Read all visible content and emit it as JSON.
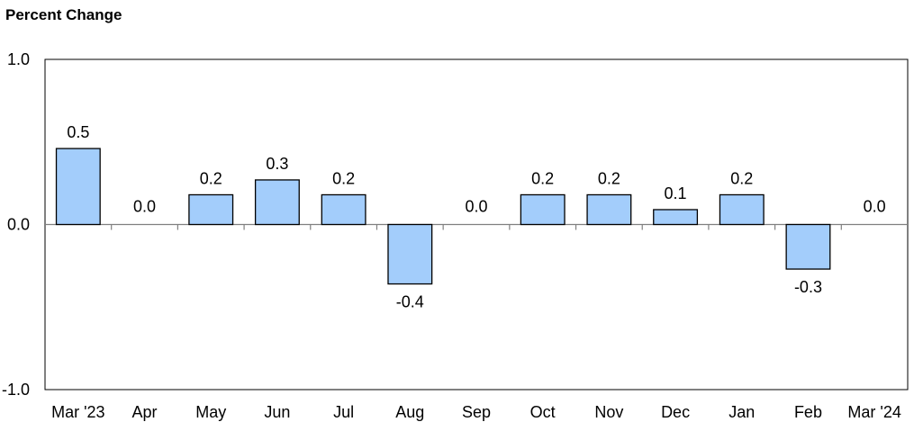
{
  "chart_data": {
    "type": "bar",
    "title": "Percent Change",
    "xlabel": "",
    "ylabel": "",
    "categories": [
      "Mar '23",
      "Apr",
      "May",
      "Jun",
      "Jul",
      "Aug",
      "Sep",
      "Oct",
      "Nov",
      "Dec",
      "Jan",
      "Feb",
      "Mar '24"
    ],
    "values": [
      0.46,
      0.0,
      0.18,
      0.27,
      0.18,
      -0.36,
      0.0,
      0.18,
      0.18,
      0.09,
      0.18,
      -0.27,
      0.0
    ],
    "data_labels": [
      "0.5",
      "0.0",
      "0.2",
      "0.3",
      "0.2",
      "-0.4",
      "0.0",
      "0.2",
      "0.2",
      "0.1",
      "0.2",
      "-0.3",
      "0.0"
    ],
    "ylim": [
      -1.0,
      1.0
    ],
    "yticks": [
      1.0,
      0.0,
      -1.0
    ],
    "ytick_labels": [
      "1.0",
      "0.0",
      "-1.0"
    ],
    "bar_color": "#a3cdfb",
    "grid": false,
    "legend": "none"
  }
}
